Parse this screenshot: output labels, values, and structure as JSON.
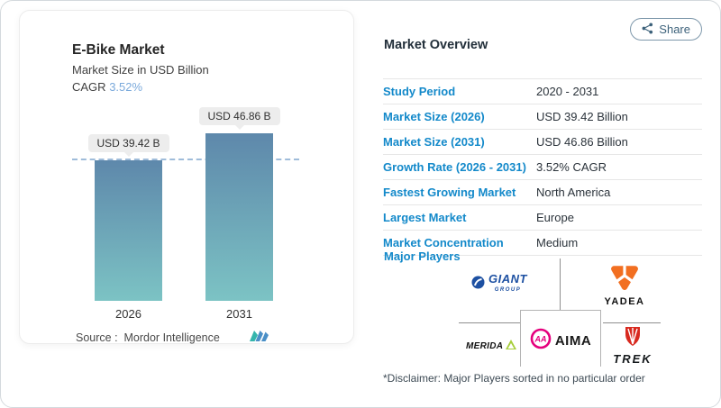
{
  "page": {
    "share_label": "Share"
  },
  "chart_card": {
    "title": "E-Bike Market",
    "subtitle": "Market Size in USD Billion",
    "cagr_label": "CAGR",
    "cagr_value": "3.52%",
    "source_text": "Source :  Mordor Intelligence",
    "source_logo": "mordor-intelligence"
  },
  "chart_data": {
    "type": "bar",
    "title": "E-Bike Market",
    "subtitle": "Market Size in USD Billion",
    "cagr": "3.52%",
    "categories": [
      "2026",
      "2031"
    ],
    "values": [
      39.42,
      46.86
    ],
    "bar_labels": [
      "USD 39.42 B",
      "USD 46.86 B"
    ],
    "ylim": [
      0,
      50
    ],
    "reference_line": 39.42,
    "bar_gradient": [
      "#5e88ab",
      "#7cc3c4"
    ],
    "reference_line_color": "#9fbcda",
    "grid": false,
    "legend": false,
    "source": "Mordor Intelligence"
  },
  "overview": {
    "title": "Market Overview",
    "rows": [
      {
        "label": "Study Period",
        "value": "2020 - 2031"
      },
      {
        "label": "Market Size (2026)",
        "value": "USD 39.42 Billion"
      },
      {
        "label": "Market Size (2031)",
        "value": "USD 46.86 Billion"
      },
      {
        "label": "Growth Rate (2026 - 2031)",
        "value": "3.52% CAGR"
      },
      {
        "label": "Fastest Growing Market",
        "value": "North America"
      },
      {
        "label": "Largest Market",
        "value": "Europe"
      },
      {
        "label": "Market Concentration",
        "value": "Medium"
      }
    ],
    "major_players_label": "Major Players",
    "players": {
      "giant": {
        "label": "GIANT",
        "sub": "GROUP"
      },
      "yadea": {
        "label": "YADEA"
      },
      "merida": {
        "label": "MERIDA"
      },
      "aima": {
        "label": "AIMA",
        "monogram": "AA"
      },
      "trek": {
        "label": "TREK"
      }
    },
    "disclaimer": "*Disclaimer: Major Players sorted in no particular order"
  },
  "colors": {
    "label_blue": "#1389ca",
    "value_text": "#2b333b",
    "share_teal": "#3c617a",
    "giant_blue": "#1d50a2",
    "yadea_orange": "#f26f21",
    "merida_green": "#a6ce39",
    "aima_pink": "#e5007d",
    "trek_red": "#d8291f",
    "mordor_teal": "#35b5ac",
    "mordor_blue": "#4a8fc7"
  }
}
